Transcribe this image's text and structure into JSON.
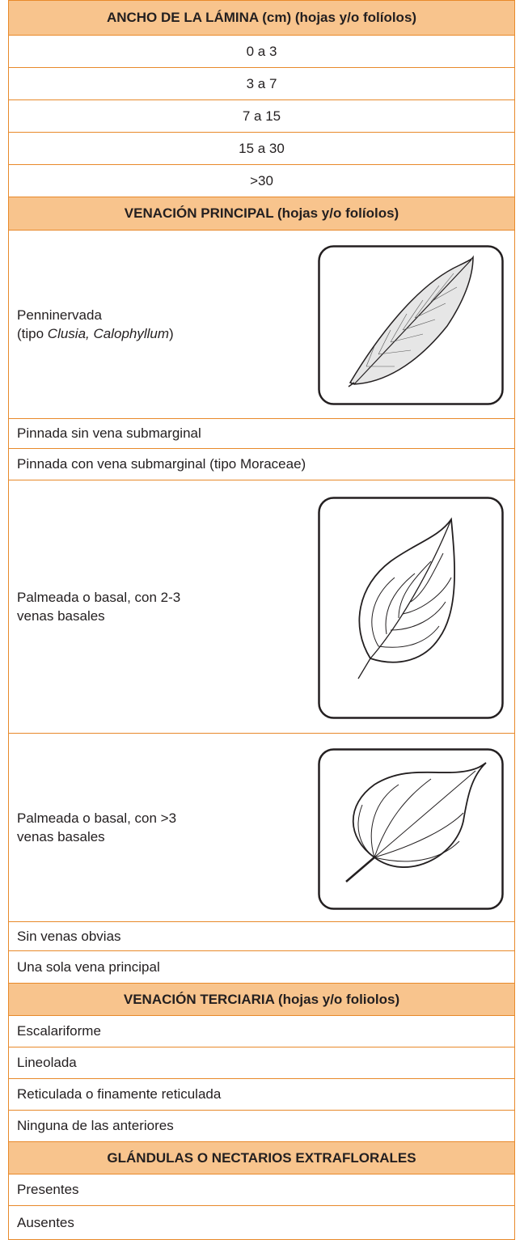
{
  "sections": [
    {
      "header": "ANCHO DE LA LÁMINA (cm) (hojas y/o folíolos)",
      "rows": [
        "0 a 3",
        "3 a 7",
        "7 a 15",
        "15 a 30",
        ">30"
      ]
    },
    {
      "header": "VENACIÓN PRINCIPAL (hojas y/o folíolos)",
      "rows": [
        {
          "line1": "Penninervada",
          "line2_pre": "(tipo ",
          "line2_italic": "Clusia, Calophyllum",
          "line2_post": ")"
        },
        "Pinnada sin vena submarginal",
        "Pinnada con vena submarginal (tipo Moraceae)",
        {
          "line1": "Palmeada o basal, con 2-3",
          "line2": "venas basales"
        },
        {
          "line1": "Palmeada o basal, con >3",
          "line2": "venas basales"
        },
        "Sin venas obvias",
        "Una sola vena principal"
      ]
    },
    {
      "header": "VENACIÓN TERCIARIA (hojas y/o foliolos)",
      "rows": [
        "Escalariforme",
        "Lineolada",
        "Reticulada o finamente reticulada",
        "Ninguna de las anteriores"
      ]
    },
    {
      "header": "GLÁNDULAS O NECTARIOS EXTRAFLORALES",
      "rows": [
        "Presentes",
        "Ausentes"
      ]
    }
  ]
}
